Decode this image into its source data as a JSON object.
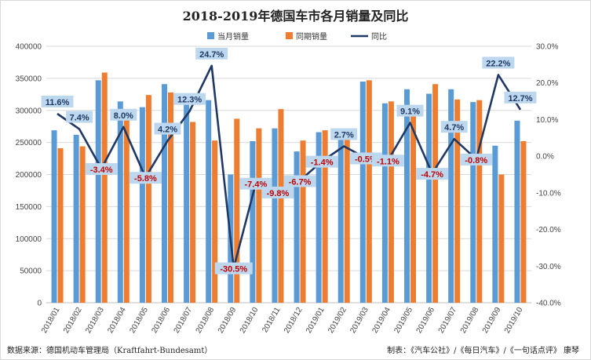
{
  "page": {
    "title": "2018-2019年德国车市各月销量及同比",
    "source_note": "数据来源：德国机动车管理局（Kraftfahrt-Bundesamt）",
    "credit_note": "制表：《汽车公社》/《每日汽车》/《一句话点评》 康琴"
  },
  "colors": {
    "current": "#5b9bd5",
    "prior": "#ed7d31",
    "yoy": "#1f3864",
    "label_box": "#bdd7ee",
    "positive": "#1f3864",
    "negative": "#c00000"
  },
  "chart_data": {
    "type": "bar",
    "title": "2018-2019年德国车市各月销量及同比",
    "categories": [
      "2018/01",
      "2018/02",
      "2018/03",
      "2018/04",
      "2018/05",
      "2018/06",
      "2018/07",
      "2018/08",
      "2018/09",
      "2018/10",
      "2018/11",
      "2018/12",
      "2019/01",
      "2019/02",
      "2019/03",
      "2019/04",
      "2019/05",
      "2019/06",
      "2019/07",
      "2019/08",
      "2019/09",
      "2019/10"
    ],
    "series": [
      {
        "name": "当月销量",
        "type": "bar",
        "axis": "left",
        "values": [
          269000,
          262000,
          347000,
          314000,
          305000,
          341000,
          317000,
          316000,
          200000,
          252000,
          272000,
          236000,
          266000,
          268000,
          345000,
          311000,
          333000,
          326000,
          333000,
          313000,
          245000,
          284000
        ]
      },
      {
        "name": "同期销量",
        "type": "bar",
        "axis": "left",
        "values": [
          241000,
          244000,
          359000,
          291000,
          324000,
          328000,
          282000,
          253000,
          287000,
          272000,
          302000,
          253000,
          269000,
          262000,
          347000,
          314000,
          305000,
          341000,
          317000,
          316000,
          200000,
          252000
        ]
      },
      {
        "name": "同比",
        "type": "line",
        "axis": "right",
        "values": [
          11.6,
          7.4,
          -3.4,
          8.0,
          -5.8,
          4.2,
          12.3,
          24.7,
          -30.5,
          -7.4,
          -9.8,
          -6.7,
          -1.4,
          2.7,
          -0.5,
          -1.1,
          9.1,
          -4.7,
          4.7,
          -0.8,
          22.2,
          12.7
        ],
        "labels": [
          "11.6%",
          "7.4%",
          "-3.4%",
          "8.0%",
          "-5.8%",
          "4.2%",
          "12.3%",
          "24.7%",
          "-30.5%",
          "-7.4%",
          "-9.8%",
          "-6.7%",
          "-1.4%",
          "2.7%",
          "-0.5%",
          "-1.1%",
          "9.1%",
          "-4.7%",
          "4.7%",
          "-0.8%",
          "22.2%",
          "12.7%"
        ]
      }
    ],
    "y_left": {
      "min": 0,
      "max": 400000,
      "step": 50000,
      "ticks": [
        "0",
        "50000",
        "100000",
        "150000",
        "200000",
        "250000",
        "300000",
        "350000",
        "400000"
      ]
    },
    "y_right": {
      "min": -40,
      "max": 30,
      "step": 10,
      "ticks": [
        "-40.0%",
        "-30.0%",
        "-20.0%",
        "-10.0%",
        "0.0%",
        "10.0%",
        "20.0%",
        "30.0%"
      ]
    },
    "grid": true,
    "legend_position": "top-center"
  }
}
